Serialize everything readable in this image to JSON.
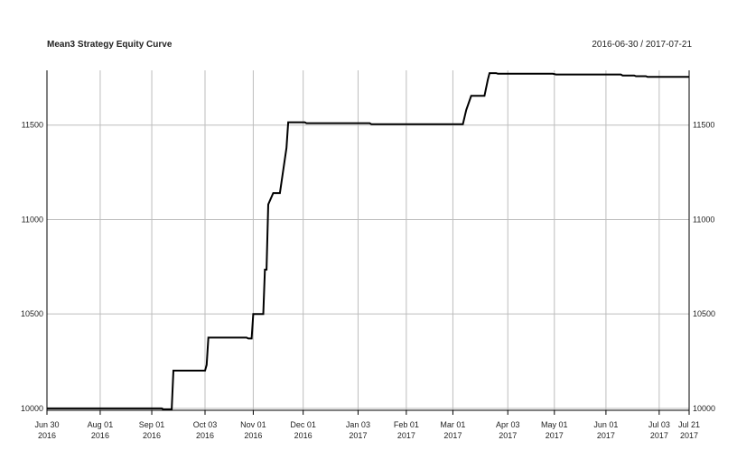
{
  "chart_data": {
    "type": "line",
    "title": "Mean3 Strategy Equity Curve",
    "date_range": "2016-06-30 / 2017-07-21",
    "xlabel": "",
    "ylabel": "",
    "ylim": [
      9990,
      11790
    ],
    "y_ticks": [
      10000,
      10500,
      11000,
      11500
    ],
    "grid": true,
    "x_ticks": [
      {
        "date": "2016-06-30",
        "line1": "Jun 30",
        "line2": "2016"
      },
      {
        "date": "2016-08-01",
        "line1": "Aug 01",
        "line2": "2016"
      },
      {
        "date": "2016-09-01",
        "line1": "Sep 01",
        "line2": "2016"
      },
      {
        "date": "2016-10-03",
        "line1": "Oct 03",
        "line2": "2016"
      },
      {
        "date": "2016-11-01",
        "line1": "Nov 01",
        "line2": "2016"
      },
      {
        "date": "2016-12-01",
        "line1": "Dec 01",
        "line2": "2016"
      },
      {
        "date": "2017-01-03",
        "line1": "Jan 03",
        "line2": "2017"
      },
      {
        "date": "2017-02-01",
        "line1": "Feb 01",
        "line2": "2017"
      },
      {
        "date": "2017-03-01",
        "line1": "Mar 01",
        "line2": "2017"
      },
      {
        "date": "2017-04-03",
        "line1": "Apr 03",
        "line2": "2017"
      },
      {
        "date": "2017-05-01",
        "line1": "May 01",
        "line2": "2017"
      },
      {
        "date": "2017-06-01",
        "line1": "Jun 01",
        "line2": "2017"
      },
      {
        "date": "2017-07-03",
        "line1": "Jul 03",
        "line2": "2017"
      },
      {
        "date": "2017-07-21",
        "line1": "Jul 21",
        "line2": "2017"
      }
    ],
    "series": [
      {
        "color": "#000000",
        "points": [
          [
            "2016-06-30",
            10000
          ],
          [
            "2016-09-07",
            10000
          ],
          [
            "2016-09-08",
            9995
          ],
          [
            "2016-09-13",
            9995
          ],
          [
            "2016-09-14",
            10200
          ],
          [
            "2016-10-03",
            10200
          ],
          [
            "2016-10-04",
            10230
          ],
          [
            "2016-10-05",
            10375
          ],
          [
            "2016-10-28",
            10375
          ],
          [
            "2016-10-29",
            10370
          ],
          [
            "2016-10-31",
            10370
          ],
          [
            "2016-11-01",
            10500
          ],
          [
            "2016-11-07",
            10500
          ],
          [
            "2016-11-08",
            10735
          ],
          [
            "2016-11-09",
            10735
          ],
          [
            "2016-11-10",
            11080
          ],
          [
            "2016-11-13",
            11140
          ],
          [
            "2016-11-17",
            11140
          ],
          [
            "2016-11-21",
            11380
          ],
          [
            "2016-11-22",
            11515
          ],
          [
            "2016-12-02",
            11515
          ],
          [
            "2016-12-03",
            11510
          ],
          [
            "2017-01-10",
            11510
          ],
          [
            "2017-01-11",
            11505
          ],
          [
            "2017-03-07",
            11505
          ],
          [
            "2017-03-09",
            11580
          ],
          [
            "2017-03-12",
            11655
          ],
          [
            "2017-03-20",
            11655
          ],
          [
            "2017-03-22",
            11740
          ],
          [
            "2017-03-23",
            11775
          ],
          [
            "2017-03-27",
            11775
          ],
          [
            "2017-03-28",
            11772
          ],
          [
            "2017-04-30",
            11772
          ],
          [
            "2017-05-02",
            11768
          ],
          [
            "2017-06-10",
            11768
          ],
          [
            "2017-06-11",
            11763
          ],
          [
            "2017-06-18",
            11763
          ],
          [
            "2017-06-19",
            11759
          ],
          [
            "2017-06-25",
            11759
          ],
          [
            "2017-06-26",
            11755
          ],
          [
            "2017-07-21",
            11755
          ]
        ]
      }
    ]
  }
}
